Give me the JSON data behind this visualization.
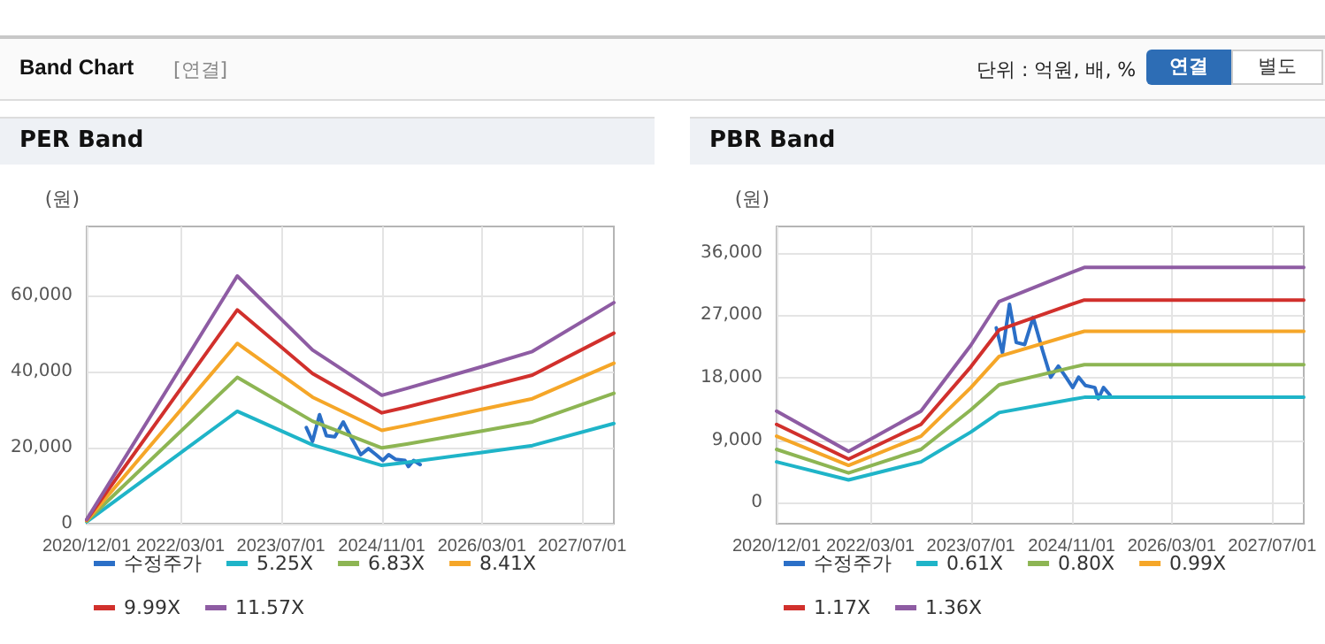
{
  "chart_data": [
    {
      "type": "other",
      "title": "Band Chart",
      "annotations": [
        "[연결]",
        "단위 : 억원, 배, %",
        "연결",
        "별도"
      ]
    },
    {
      "type": "line",
      "title": "PER Band",
      "ylabel": "(원)",
      "xlim": [
        "2020-12-01",
        "2027-12-01"
      ],
      "ylim": [
        0,
        78000
      ],
      "xticks": [
        {
          "value": "2020-12-01",
          "label": "2020/12/01"
        },
        {
          "value": "2022-03-01",
          "label": "2022/03/01"
        },
        {
          "value": "2023-07-01",
          "label": "2023/07/01"
        },
        {
          "value": "2024-11-01",
          "label": "2024/11/01"
        },
        {
          "value": "2026-03-01",
          "label": "2026/03/01"
        },
        {
          "value": "2027-07-01",
          "label": "2027/07/01"
        }
      ],
      "yticks": [
        0,
        {
          "value": 20000,
          "label": "20,000"
        },
        {
          "value": 40000,
          "label": "40,000"
        },
        {
          "value": 60000,
          "label": "60,000"
        }
      ],
      "grid": true,
      "legend": "bottom",
      "marker": "none",
      "line_style": "solid",
      "series": [
        {
          "name": "수정주가",
          "color": "#2b6fc7",
          "x": [
            "2023-11-01",
            "2023-12-01",
            "2024-01-04",
            "2024-02-06",
            "2024-03-18",
            "2024-04-28",
            "2024-06-12",
            "2024-07-22",
            "2024-08-28",
            "2024-10-04",
            "2024-11-06",
            "2024-12-04",
            "2025-01-06",
            "2025-02-21",
            "2025-03-10",
            "2025-04-04",
            "2025-05-06"
          ],
          "values": [
            25200,
            21600,
            28600,
            23100,
            22800,
            26700,
            22000,
            18100,
            19700,
            18100,
            16600,
            18100,
            16900,
            16600,
            15000,
            16600,
            15500
          ]
        },
        {
          "name": "5.25X",
          "color": "#1fb4c8",
          "x": [
            "2020-12-01",
            "2022-12-01",
            "2023-12-01",
            "2024-11-01",
            "2025-03-01",
            "2026-03-01",
            "2026-11-01",
            "2027-12-01"
          ],
          "values": [
            500,
            29500,
            20700,
            15300,
            16100,
            18700,
            20500,
            26300
          ]
        },
        {
          "name": "6.83X",
          "color": "#8db553",
          "x": [
            "2020-12-01",
            "2022-12-01",
            "2023-12-01",
            "2024-11-01",
            "2025-03-01",
            "2026-03-01",
            "2026-11-01",
            "2027-12-01"
          ],
          "values": [
            700,
            38400,
            26900,
            19900,
            20900,
            24300,
            26700,
            34200
          ]
        },
        {
          "name": "8.41X",
          "color": "#f5a628",
          "x": [
            "2020-12-01",
            "2022-12-01",
            "2023-12-01",
            "2024-11-01",
            "2025-03-01",
            "2026-03-01",
            "2026-11-01",
            "2027-12-01"
          ],
          "values": [
            800,
            47300,
            33200,
            24500,
            25800,
            30000,
            32800,
            42100
          ]
        },
        {
          "name": "9.99X",
          "color": "#d1302c",
          "x": [
            "2020-12-01",
            "2022-12-01",
            "2023-12-01",
            "2024-11-01",
            "2025-03-01",
            "2026-03-01",
            "2026-11-01",
            "2027-12-01"
          ],
          "values": [
            1000,
            56100,
            39400,
            29100,
            30600,
            35600,
            39000,
            50000
          ]
        },
        {
          "name": "11.57X",
          "color": "#8e5ca3",
          "x": [
            "2020-12-01",
            "2022-12-01",
            "2023-12-01",
            "2024-11-01",
            "2025-03-01",
            "2026-03-01",
            "2026-11-01",
            "2027-12-01"
          ],
          "values": [
            1100,
            65000,
            45600,
            33700,
            35500,
            41200,
            45200,
            58000
          ]
        }
      ]
    },
    {
      "type": "line",
      "title": "PBR Band",
      "ylabel": "(원)",
      "xlim": [
        "2020-12-01",
        "2027-12-01"
      ],
      "ylim": [
        -3000,
        39800
      ],
      "xticks": [
        {
          "value": "2020-12-01",
          "label": "2020/12/01"
        },
        {
          "value": "2022-03-01",
          "label": "2022/03/01"
        },
        {
          "value": "2023-07-01",
          "label": "2023/07/01"
        },
        {
          "value": "2024-11-01",
          "label": "2024/11/01"
        },
        {
          "value": "2026-03-01",
          "label": "2026/03/01"
        },
        {
          "value": "2027-07-01",
          "label": "2027/07/01"
        }
      ],
      "yticks": [
        0,
        {
          "value": 9000,
          "label": "9,000"
        },
        {
          "value": 18000,
          "label": "18,000"
        },
        {
          "value": 27000,
          "label": "27,000"
        },
        {
          "value": 36000,
          "label": "36,000"
        }
      ],
      "grid": true,
      "legend": "bottom",
      "marker": "none",
      "line_style": "solid",
      "series": [
        {
          "name": "수정주가",
          "color": "#2b6fc7",
          "x": [
            "2023-11-01",
            "2023-12-01",
            "2024-01-04",
            "2024-02-06",
            "2024-03-18",
            "2024-04-28",
            "2024-06-12",
            "2024-07-22",
            "2024-08-28",
            "2024-10-04",
            "2024-11-06",
            "2024-12-04",
            "2025-01-06",
            "2025-02-21",
            "2025-03-10",
            "2025-04-04",
            "2025-05-06"
          ],
          "values": [
            25200,
            21600,
            28600,
            23100,
            22800,
            26700,
            22000,
            18100,
            19700,
            18100,
            16600,
            18100,
            16900,
            16600,
            15000,
            16600,
            15500
          ]
        },
        {
          "name": "0.61X",
          "color": "#1fb4c8",
          "x": [
            "2020-12-01",
            "2021-11-15",
            "2022-11-01",
            "2023-07-01",
            "2023-11-15",
            "2024-11-01",
            "2025-01-01",
            "2027-12-01"
          ],
          "values": [
            5900,
            3300,
            5900,
            10200,
            13000,
            14900,
            15200,
            15200
          ]
        },
        {
          "name": "0.80X",
          "color": "#8db553",
          "x": [
            "2020-12-01",
            "2021-11-15",
            "2022-11-01",
            "2023-07-01",
            "2023-11-15",
            "2024-11-01",
            "2025-01-01",
            "2027-12-01"
          ],
          "values": [
            7700,
            4300,
            7700,
            13400,
            17000,
            19500,
            19900,
            19900
          ]
        },
        {
          "name": "0.99X",
          "color": "#f5a628",
          "x": [
            "2020-12-01",
            "2021-11-15",
            "2022-11-01",
            "2023-07-01",
            "2023-11-15",
            "2024-11-01",
            "2025-01-01",
            "2027-12-01"
          ],
          "values": [
            9600,
            5400,
            9600,
            16600,
            21100,
            24200,
            24700,
            24700
          ]
        },
        {
          "name": "1.17X",
          "color": "#d1302c",
          "x": [
            "2020-12-01",
            "2021-11-15",
            "2022-11-01",
            "2023-07-01",
            "2023-11-15",
            "2024-11-01",
            "2025-01-01",
            "2027-12-01"
          ],
          "values": [
            11300,
            6300,
            11300,
            19600,
            24900,
            28600,
            29200,
            29200
          ]
        },
        {
          "name": "1.36X",
          "color": "#8e5ca3",
          "x": [
            "2020-12-01",
            "2021-11-15",
            "2022-11-01",
            "2023-07-01",
            "2023-11-15",
            "2024-11-01",
            "2025-01-01",
            "2027-12-01"
          ],
          "values": [
            13200,
            7400,
            13200,
            22700,
            29000,
            33200,
            33900,
            33900
          ]
        }
      ]
    }
  ]
}
